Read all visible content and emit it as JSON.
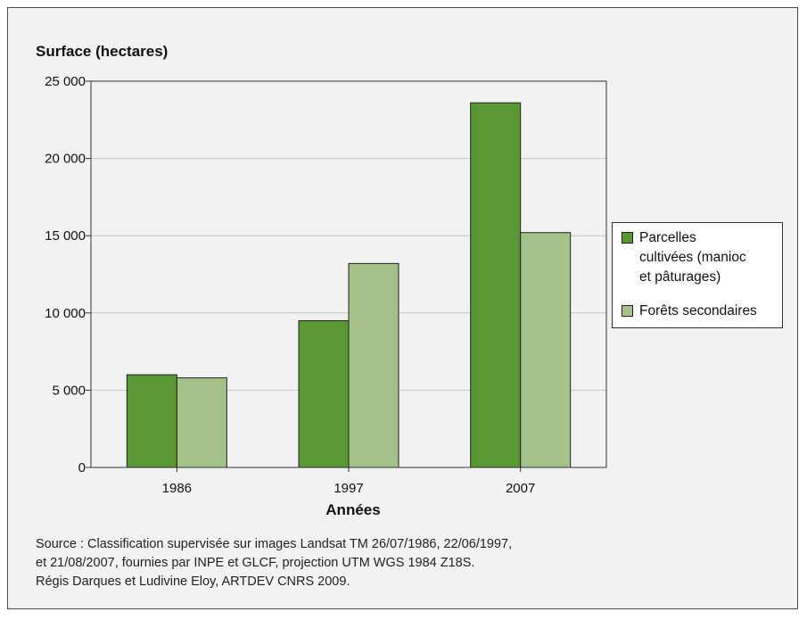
{
  "chart_data": {
    "type": "bar",
    "ylabel": "Surface (hectares)",
    "xlabel": "Années",
    "categories": [
      "1986",
      "1997",
      "2007"
    ],
    "series": [
      {
        "name": "Parcelles cultivées (manioc et pâturages)",
        "color": "#5a9632",
        "values": [
          6000,
          9500,
          23600
        ]
      },
      {
        "name": "Forêts secondaires",
        "color": "#a3c28a",
        "values": [
          5800,
          13200,
          15200
        ]
      }
    ],
    "ylim": [
      0,
      25000
    ],
    "yticks": [
      0,
      5000,
      10000,
      15000,
      20000,
      25000
    ],
    "ytick_labels": [
      "0",
      "5 000",
      "10 000",
      "15 000",
      "20 000",
      "25 000"
    ],
    "grid": true,
    "legend_position": "right"
  },
  "legend": {
    "items": [
      {
        "lines": [
          "Parcelles",
          "cultivées (manioc",
          "et pâturages)"
        ]
      },
      {
        "lines": [
          "Forêts secondaires"
        ]
      }
    ]
  },
  "source_lines": [
    "Source : Classification supervisée sur images Landsat TM 26/07/1986, 22/06/1997,",
    "et 21/08/2007, fournies par INPE et GLCF, projection UTM WGS 1984 Z18S.",
    "Régis Darques et Ludivine Eloy, ARTDEV CNRS 2009."
  ]
}
